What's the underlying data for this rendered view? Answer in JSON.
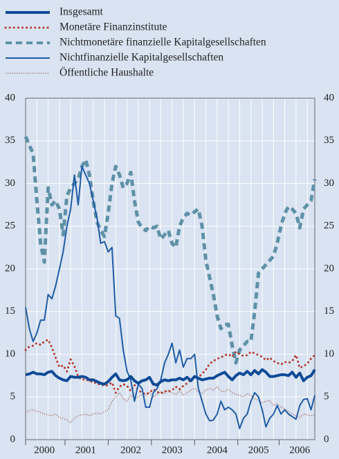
{
  "chart_data": {
    "type": "line",
    "categories": [
      null,
      null,
      null,
      null,
      null,
      "2000",
      null,
      null,
      null,
      null,
      null,
      null,
      null,
      null,
      null,
      null,
      "2001",
      null,
      null,
      null,
      null,
      null,
      null,
      null,
      null,
      null,
      null,
      null,
      "2002",
      null,
      null,
      null,
      null,
      null,
      null,
      null,
      null,
      null,
      null,
      "2003",
      null,
      null,
      null,
      null,
      null,
      null,
      null,
      null,
      null,
      null,
      null,
      "2004",
      null,
      null,
      null,
      null,
      null,
      null,
      null,
      null,
      null,
      null,
      "2005",
      null,
      null,
      null,
      null,
      null,
      null,
      null,
      null,
      null,
      null,
      "2006",
      null,
      null,
      null,
      null
    ],
    "ylim": [
      0,
      40
    ],
    "yticks": [
      0,
      5,
      10,
      15,
      20,
      25,
      30,
      35,
      40
    ],
    "grid": true,
    "series": [
      {
        "name": "Insgesamt",
        "color": "#0d4a97",
        "line_style": "solid",
        "line_width": 4,
        "values": [
          7.6,
          7.7,
          7.9,
          7.7,
          7.7,
          7.6,
          7.9,
          8.0,
          7.5,
          7.2,
          7.0,
          6.9,
          7.4,
          7.3,
          7.3,
          7.4,
          7.3,
          7.0,
          7.0,
          6.8,
          6.6,
          6.5,
          6.8,
          7.3,
          7.7,
          7.0,
          6.9,
          7.0,
          7.4,
          6.9,
          6.6,
          6.9,
          7.0,
          7.3,
          6.5,
          6.4,
          6.8,
          7.0,
          6.9,
          7.0,
          7.0,
          7.2,
          7.0,
          7.3,
          6.9,
          7.4,
          7.2,
          7.0,
          7.1,
          7.2,
          7.2,
          7.5,
          7.7,
          7.9,
          7.4,
          7.0,
          7.5,
          7.8,
          7.6,
          8.0,
          7.6,
          8.1,
          7.7,
          8.2,
          7.9,
          7.4,
          7.4,
          7.5,
          7.6,
          7.6,
          7.5,
          7.9,
          7.3,
          7.8,
          6.9,
          7.3,
          7.5,
          8.2
        ]
      },
      {
        "name": "Monetäre Finanzinstitute",
        "color": "#b43a2b",
        "line_style": "dotted",
        "line_width": 3,
        "values": [
          10.5,
          10.9,
          11.0,
          11.3,
          11.1,
          11.5,
          11.7,
          10.8,
          9.6,
          8.5,
          8.7,
          8.0,
          9.4,
          8.6,
          7.4,
          7.0,
          7.1,
          6.8,
          6.8,
          6.5,
          6.5,
          6.3,
          6.4,
          6.7,
          5.5,
          6.2,
          6.5,
          6.3,
          5.7,
          6.4,
          5.8,
          5.5,
          5.3,
          5.5,
          5.9,
          5.6,
          5.4,
          5.7,
          5.6,
          5.8,
          6.2,
          5.9,
          6.3,
          6.6,
          7.0,
          7.2,
          7.3,
          7.7,
          8.2,
          8.9,
          9.2,
          9.5,
          9.6,
          9.9,
          10.0,
          9.7,
          10.3,
          10.0,
          9.8,
          9.9,
          10.3,
          10.1,
          9.9,
          9.7,
          9.3,
          9.6,
          9.2,
          9.0,
          8.8,
          9.1,
          9.0,
          9.2,
          9.9,
          8.4,
          8.6,
          8.9,
          9.5,
          9.9
        ]
      },
      {
        "name": "Nichtmonetäre finanzielle Kapitalgesellschaften",
        "color": "#5e91a8",
        "line_style": "dashed",
        "line_width": 5,
        "values": [
          35.5,
          34.5,
          33.5,
          28.0,
          23.0,
          20.8,
          29.5,
          27.5,
          28.0,
          27.0,
          24.0,
          28.5,
          29.5,
          30.0,
          30.5,
          32.0,
          32.8,
          31.0,
          28.0,
          25.5,
          24.5,
          23.8,
          26.5,
          30.0,
          32.0,
          31.0,
          29.5,
          30.0,
          31.3,
          28.0,
          25.5,
          24.8,
          24.5,
          25.0,
          24.8,
          25.0,
          23.5,
          24.0,
          24.5,
          23.0,
          22.5,
          25.0,
          26.0,
          26.5,
          26.3,
          26.7,
          27.0,
          25.0,
          21.0,
          19.0,
          17.0,
          14.5,
          13.0,
          13.5,
          13.5,
          11.0,
          9.0,
          10.5,
          11.0,
          11.5,
          11.5,
          15.0,
          19.5,
          20.0,
          20.5,
          21.0,
          21.5,
          23.0,
          25.0,
          26.5,
          27.3,
          27.0,
          26.5,
          24.8,
          27.0,
          27.5,
          28.0,
          30.5
        ]
      },
      {
        "name": "Nichtfinanzielle Kapitalgesellschaften",
        "color": "#1f5ba7",
        "line_style": "solid",
        "line_width": 2,
        "values": [
          15.5,
          13,
          11.5,
          12.5,
          14,
          14,
          17,
          16.5,
          18,
          20,
          22,
          25,
          27,
          31,
          27.5,
          32,
          31,
          30,
          28,
          26,
          23,
          23.2,
          22,
          22.5,
          14.5,
          14.2,
          10.5,
          8,
          7,
          4.5,
          6.5,
          6,
          3.8,
          3.8,
          5.5,
          6,
          7,
          9,
          10,
          11.3,
          9,
          10.5,
          8.5,
          9.5,
          9.5,
          10,
          6,
          4.5,
          3,
          2.2,
          2.3,
          3,
          4.5,
          3.5,
          3.8,
          3.5,
          3,
          1.3,
          2.5,
          3,
          4.5,
          5.5,
          5,
          3.5,
          1.5,
          2.5,
          3,
          4,
          3,
          3.5,
          3,
          2.7,
          2.4,
          4,
          4.7,
          4.8,
          3.5,
          5.2
        ]
      },
      {
        "name": "Öffentliche Haushalte",
        "color": "#a0594a",
        "line_style": "dotted",
        "line_width": 1.3,
        "values": [
          3.2,
          3.4,
          3.5,
          3.3,
          3.2,
          3.0,
          2.9,
          2.8,
          3.0,
          2.6,
          2.5,
          2.3,
          2.0,
          2.5,
          2.8,
          2.9,
          3.0,
          2.8,
          3.0,
          3.1,
          3.0,
          3.3,
          3.5,
          4.5,
          5.0,
          5.5,
          4.8,
          4.5,
          5.2,
          4.8,
          5.0,
          5.3,
          5.2,
          5.5,
          5.0,
          5.3,
          5.6,
          5.4,
          5.8,
          5.5,
          5.3,
          5.7,
          5.2,
          5.5,
          5.8,
          6.0,
          5.6,
          5.4,
          5.8,
          6.0,
          5.8,
          6.2,
          5.7,
          5.6,
          5.9,
          5.5,
          5.3,
          5.2,
          5.0,
          5.4,
          5.2,
          4.8,
          4.6,
          4.3,
          4.5,
          4.6,
          4.0,
          4.2,
          3.8,
          3.6,
          3.3,
          3.0,
          2.8,
          2.6,
          3.0,
          2.9,
          2.8,
          2.9
        ]
      }
    ]
  }
}
